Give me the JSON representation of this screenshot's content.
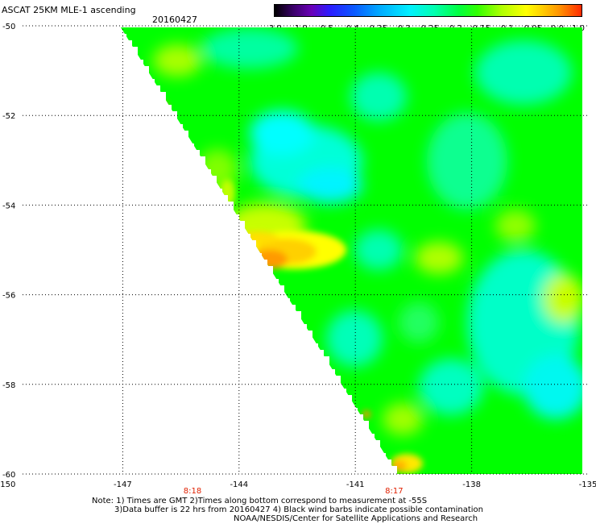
{
  "header": {
    "title": "ASCAT 25KM MLE-1 ascending",
    "date": "20160427"
  },
  "colorbar": {
    "labels": [
      "-3.0",
      "-1.0",
      "-0.5",
      "-0.4",
      "-0.35",
      "-0.3",
      "-0.25",
      "-0.2",
      "-0.15",
      "-0.1",
      "-0.05",
      "0.0",
      "1.0"
    ],
    "colors": {
      "min": "#000000",
      "low": "#2c1cff",
      "mid": "#00ff40",
      "high": "#ffff00",
      "max": "#ff2a00"
    }
  },
  "map": {
    "lon_labels": [
      "-150",
      "-147",
      "-144",
      "-141",
      "-138",
      "-135"
    ],
    "lat_labels": [
      "-50",
      "-52",
      "-54",
      "-56",
      "-58",
      "-60"
    ],
    "time_labels": [
      {
        "lon": -145.2,
        "text": "8:18"
      },
      {
        "lon": -140.0,
        "text": "8:17"
      }
    ],
    "time_label_color": "#e02000",
    "background_color": "#00ff00"
  },
  "notes": {
    "line1": "Note: 1) Times are GMT 2)Times along bottom correspond to measurement at -55S",
    "line2": "3)Data buffer is 22 hrs from 20160427 4) Black wind barbs indicate possible contamination",
    "line3": "NOAA/NESDIS/Center for Satellite Applications and Research"
  }
}
